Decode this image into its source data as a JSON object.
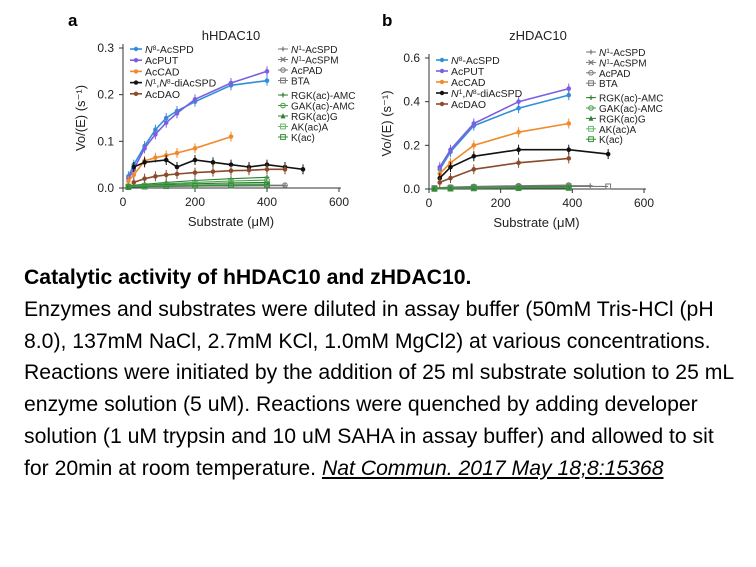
{
  "colors": {
    "N8-AcSPD": "#2f8fd8",
    "AcPUT": "#7a5fe0",
    "AcCAD": "#f28a2c",
    "N1N8-diAcSPD": "#111111",
    "AcDAO": "#8b4a2b",
    "N1-AcSPD": "#777777",
    "N1-AcSPM": "#777777",
    "AcPAD": "#777777",
    "BTA": "#777777",
    "RGK(ac)-AMC": "#2e7d32",
    "GAK(ac)-AMC": "#43a047",
    "RGK(ac)G": "#2e7d32",
    "AK(ac)A": "#66bb6a",
    "K(ac)": "#388e3c"
  },
  "chart_data": [
    {
      "type": "line",
      "panel_label": "a",
      "title": "hHDAC10",
      "xlabel": "Substrate (μM)",
      "ylabel": "Vo/(E) (s⁻¹)",
      "xlim": [
        0,
        600
      ],
      "ylim": [
        0,
        0.3
      ],
      "xticks": [
        "0",
        "200",
        "400",
        "600"
      ],
      "yticks": [
        "0.0",
        "0.1",
        "0.2",
        "0.3"
      ],
      "legend_left": [
        "N8-AcSPD",
        "AcPUT",
        "AcCAD",
        "N1,N8-diAcSPD",
        "AcDAO"
      ],
      "legend_right": [
        "N1-AcSPD",
        "N1-AcSPM",
        "AcPAD",
        "BTA",
        "RGK(ac)-AMC",
        "GAK(ac)-AMC",
        "RGK(ac)G",
        "AK(ac)A",
        "K(ac)"
      ],
      "series": [
        {
          "name": "N8-AcSPD",
          "x": [
            15,
            30,
            60,
            90,
            120,
            150,
            200,
            300,
            400
          ],
          "y": [
            0.025,
            0.05,
            0.09,
            0.125,
            0.15,
            0.165,
            0.185,
            0.22,
            0.23
          ]
        },
        {
          "name": "AcPUT",
          "x": [
            15,
            30,
            60,
            90,
            120,
            150,
            200,
            300,
            400
          ],
          "y": [
            0.02,
            0.04,
            0.085,
            0.115,
            0.14,
            0.16,
            0.19,
            0.225,
            0.25
          ]
        },
        {
          "name": "AcCAD",
          "x": [
            15,
            30,
            60,
            90,
            120,
            150,
            200,
            300
          ],
          "y": [
            0.015,
            0.028,
            0.058,
            0.065,
            0.07,
            0.075,
            0.085,
            0.11
          ]
        },
        {
          "name": "N1,N8-diAcSPD",
          "x": [
            30,
            60,
            120,
            150,
            200,
            250,
            300,
            350,
            400,
            450,
            500
          ],
          "y": [
            0.045,
            0.055,
            0.06,
            0.045,
            0.06,
            0.055,
            0.05,
            0.045,
            0.05,
            0.045,
            0.04
          ]
        },
        {
          "name": "AcDAO",
          "x": [
            30,
            60,
            90,
            120,
            150,
            200,
            250,
            300,
            350,
            400,
            450
          ],
          "y": [
            0.012,
            0.02,
            0.025,
            0.028,
            0.03,
            0.033,
            0.035,
            0.037,
            0.038,
            0.04,
            0.04
          ]
        },
        {
          "name": "N1-AcSPD",
          "x": [
            15,
            60,
            120,
            200,
            300,
            400,
            450
          ],
          "y": [
            0.002,
            0.003,
            0.003,
            0.004,
            0.004,
            0.005,
            0.005
          ]
        },
        {
          "name": "N1-AcSPM",
          "x": [
            15,
            60,
            120,
            200,
            300,
            400
          ],
          "y": [
            0.002,
            0.003,
            0.004,
            0.004,
            0.005,
            0.005
          ]
        },
        {
          "name": "AcPAD",
          "x": [
            15,
            60,
            120,
            200,
            300,
            400,
            450
          ],
          "y": [
            0.003,
            0.004,
            0.005,
            0.005,
            0.006,
            0.006,
            0.006
          ]
        },
        {
          "name": "BTA",
          "x": [
            15,
            60,
            120,
            200,
            300,
            400
          ],
          "y": [
            0.003,
            0.004,
            0.004,
            0.005,
            0.006,
            0.007
          ]
        },
        {
          "name": "RGK(ac)-AMC",
          "x": [
            15,
            60,
            120,
            200,
            300,
            400
          ],
          "y": [
            0.005,
            0.008,
            0.012,
            0.016,
            0.02,
            0.023
          ]
        },
        {
          "name": "GAK(ac)-AMC",
          "x": [
            15,
            60,
            120,
            200,
            300,
            400
          ],
          "y": [
            0.004,
            0.006,
            0.009,
            0.012,
            0.015,
            0.017
          ]
        },
        {
          "name": "RGK(ac)G",
          "x": [
            15,
            60,
            120,
            200,
            300,
            400
          ],
          "y": [
            0.003,
            0.005,
            0.007,
            0.009,
            0.011,
            0.012
          ]
        },
        {
          "name": "AK(ac)A",
          "x": [
            15,
            60,
            120,
            200,
            300,
            400
          ],
          "y": [
            0.002,
            0.004,
            0.005,
            0.007,
            0.008,
            0.009
          ]
        },
        {
          "name": "K(ac)",
          "x": [
            15,
            60,
            120,
            200,
            300,
            400
          ],
          "y": [
            0.002,
            0.003,
            0.004,
            0.005,
            0.006,
            0.007
          ]
        }
      ]
    },
    {
      "type": "line",
      "panel_label": "b",
      "title": "zHDAC10",
      "xlabel": "Substrate (μM)",
      "ylabel": "Vo/(E) (s⁻¹)",
      "xlim": [
        0,
        600
      ],
      "ylim": [
        0,
        0.6
      ],
      "xticks": [
        "0",
        "200",
        "400",
        "600"
      ],
      "yticks": [
        "0.0",
        "0.2",
        "0.4",
        "0.6"
      ],
      "legend_left": [
        "N8-AcSPD",
        "AcPUT",
        "AcCAD",
        "N1,N8-diAcSPD",
        "AcDAO"
      ],
      "legend_right": [
        "N1-AcSPD",
        "N1-AcSPM",
        "AcPAD",
        "BTA",
        "RGK(ac)-AMC",
        "GAK(ac)-AMC",
        "RGK(ac)G",
        "AK(ac)A",
        "K(ac)"
      ],
      "series": [
        {
          "name": "N8-AcSPD",
          "x": [
            30,
            60,
            125,
            250,
            390
          ],
          "y": [
            0.09,
            0.17,
            0.29,
            0.37,
            0.43
          ]
        },
        {
          "name": "AcPUT",
          "x": [
            30,
            60,
            125,
            250,
            390
          ],
          "y": [
            0.1,
            0.18,
            0.3,
            0.4,
            0.46
          ]
        },
        {
          "name": "AcCAD",
          "x": [
            30,
            60,
            125,
            250,
            390
          ],
          "y": [
            0.07,
            0.12,
            0.2,
            0.26,
            0.3
          ]
        },
        {
          "name": "N1,N8-diAcSPD",
          "x": [
            30,
            60,
            125,
            250,
            390,
            500
          ],
          "y": [
            0.05,
            0.1,
            0.15,
            0.18,
            0.18,
            0.16
          ]
        },
        {
          "name": "AcDAO",
          "x": [
            30,
            60,
            125,
            250,
            390
          ],
          "y": [
            0.03,
            0.05,
            0.09,
            0.12,
            0.14
          ]
        },
        {
          "name": "N1-AcSPD",
          "x": [
            15,
            60,
            125,
            250,
            390,
            450
          ],
          "y": [
            0.005,
            0.008,
            0.01,
            0.012,
            0.015,
            0.015
          ]
        },
        {
          "name": "N1-AcSPM",
          "x": [
            15,
            60,
            125,
            250,
            390
          ],
          "y": [
            0.004,
            0.007,
            0.009,
            0.011,
            0.013
          ]
        },
        {
          "name": "AcPAD",
          "x": [
            15,
            60,
            125,
            250,
            390
          ],
          "y": [
            0.005,
            0.009,
            0.012,
            0.015,
            0.018
          ]
        },
        {
          "name": "BTA",
          "x": [
            15,
            60,
            125,
            250,
            390,
            500
          ],
          "y": [
            0.004,
            0.006,
            0.008,
            0.01,
            0.012,
            0.012
          ]
        },
        {
          "name": "RGK(ac)-AMC",
          "x": [
            15,
            60,
            125,
            250,
            390
          ],
          "y": [
            0.002,
            0.004,
            0.006,
            0.008,
            0.01
          ]
        },
        {
          "name": "GAK(ac)-AMC",
          "x": [
            15,
            60,
            125,
            250,
            390
          ],
          "y": [
            0.002,
            0.003,
            0.005,
            0.007,
            0.008
          ]
        },
        {
          "name": "RGK(ac)G",
          "x": [
            15,
            60,
            125,
            250,
            390
          ],
          "y": [
            0.002,
            0.003,
            0.004,
            0.006,
            0.007
          ]
        },
        {
          "name": "AK(ac)A",
          "x": [
            15,
            60,
            125,
            250,
            390
          ],
          "y": [
            0.001,
            0.002,
            0.004,
            0.005,
            0.006
          ]
        },
        {
          "name": "K(ac)",
          "x": [
            15,
            60,
            125,
            250,
            390
          ],
          "y": [
            0.001,
            0.002,
            0.003,
            0.004,
            0.005
          ]
        }
      ]
    }
  ],
  "caption": {
    "title": "Catalytic activity of hHDAC10 and zHDAC10.",
    "body": "Enzymes and substrates were diluted in assay buffer (50mM Tris-HCl (pH 8.0), 137mM NaCl, 2.7mM KCl, 1.0mM MgCl2) at various concentrations. Reactions were initiated by the addition of 25 ml substrate solution to 25 mL enzyme solution (5 uM). Reactions were quenched by adding developer solution (1 uM trypsin and 10 uM SAHA in assay buffer) and allowed to sit for 20min at room temperature.",
    "citation": "Nat Commun. 2017 May 18;8:15368"
  }
}
